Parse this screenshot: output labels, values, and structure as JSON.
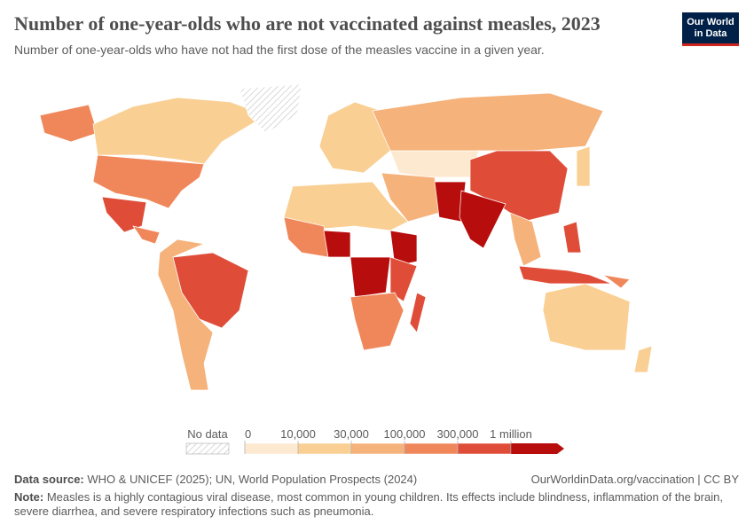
{
  "header": {
    "title": "Number of one-year-olds who are not vaccinated against measles, 2023",
    "subtitle": "Number of one-year-olds who have not had the first dose of the measles vaccine in a given year.",
    "logo": [
      "Our World",
      "in Data"
    ]
  },
  "legend": {
    "no_data": "No data",
    "ticks": [
      0,
      {
        "value": 10000,
        "label": "10,000"
      },
      {
        "value": 30000,
        "label": "30,000"
      },
      {
        "value": 100000,
        "label": "100,000"
      },
      {
        "value": 300000,
        "label": "300,000"
      },
      {
        "value": 1000000,
        "label": "1 million"
      }
    ],
    "colors": [
      "#fde9cf",
      "#f9cf93",
      "#f5b27b",
      "#f0875a",
      "#df4d39",
      "#b80d0d"
    ]
  },
  "footer": {
    "source_label": "Data source:",
    "source": "WHO & UNICEF (2025); UN, World Population Prospects (2024)",
    "link": "OurWorldinData.org/vaccination | CC BY",
    "note_label": "Note:",
    "note": "Measles is a highly contagious viral disease, most common in young children. Its effects include blindness, inflammation of the brain, severe diarrhea, and severe respiratory infections such as pneumonia."
  }
}
